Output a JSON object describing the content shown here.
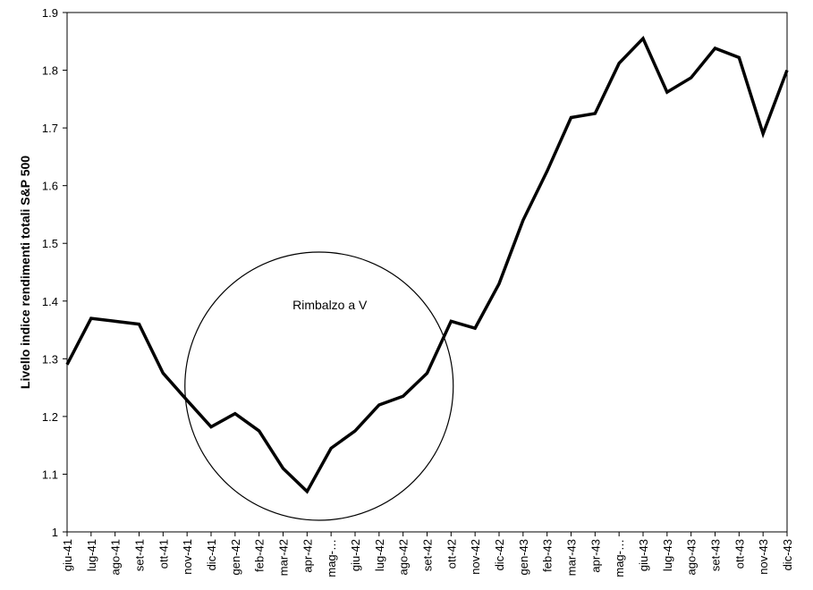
{
  "chart_data": {
    "type": "line",
    "title": "",
    "xlabel": "",
    "ylabel": "Livello indice rendimenti totali S&P 500",
    "ylim": [
      1,
      1.9
    ],
    "yticks": [
      "1",
      "1.1",
      "1.2",
      "1.3",
      "1.4",
      "1.5",
      "1.6",
      "1.7",
      "1.8",
      "1.9"
    ],
    "grid": false,
    "legend": "none",
    "categories": [
      "giu-41",
      "lug-41",
      "ago-41",
      "set-41",
      "ott-41",
      "nov-41",
      "dic-41",
      "gen-42",
      "feb-42",
      "mar-42",
      "apr-42",
      "mag-…",
      "giu-42",
      "lug-42",
      "ago-42",
      "set-42",
      "ott-42",
      "nov-42",
      "dic-42",
      "gen-43",
      "feb-43",
      "mar-43",
      "apr-43",
      "mag-…",
      "giu-43",
      "lug-43",
      "ago-43",
      "set-43",
      "ott-43",
      "nov-43",
      "dic-43"
    ],
    "series": [
      {
        "values": [
          1.29,
          1.37,
          1.365,
          1.36,
          1.275,
          1.228,
          1.182,
          1.205,
          1.175,
          1.11,
          1.07,
          1.145,
          1.175,
          1.22,
          1.235,
          1.275,
          1.365,
          1.353,
          1.43,
          1.54,
          1.625,
          1.718,
          1.725,
          1.812,
          1.855,
          1.762,
          1.787,
          1.838,
          1.822,
          1.69,
          1.8
        ],
        "color": "#000000"
      }
    ],
    "annotation": {
      "text": "Rimbalzo a V",
      "shape": "circle"
    }
  }
}
